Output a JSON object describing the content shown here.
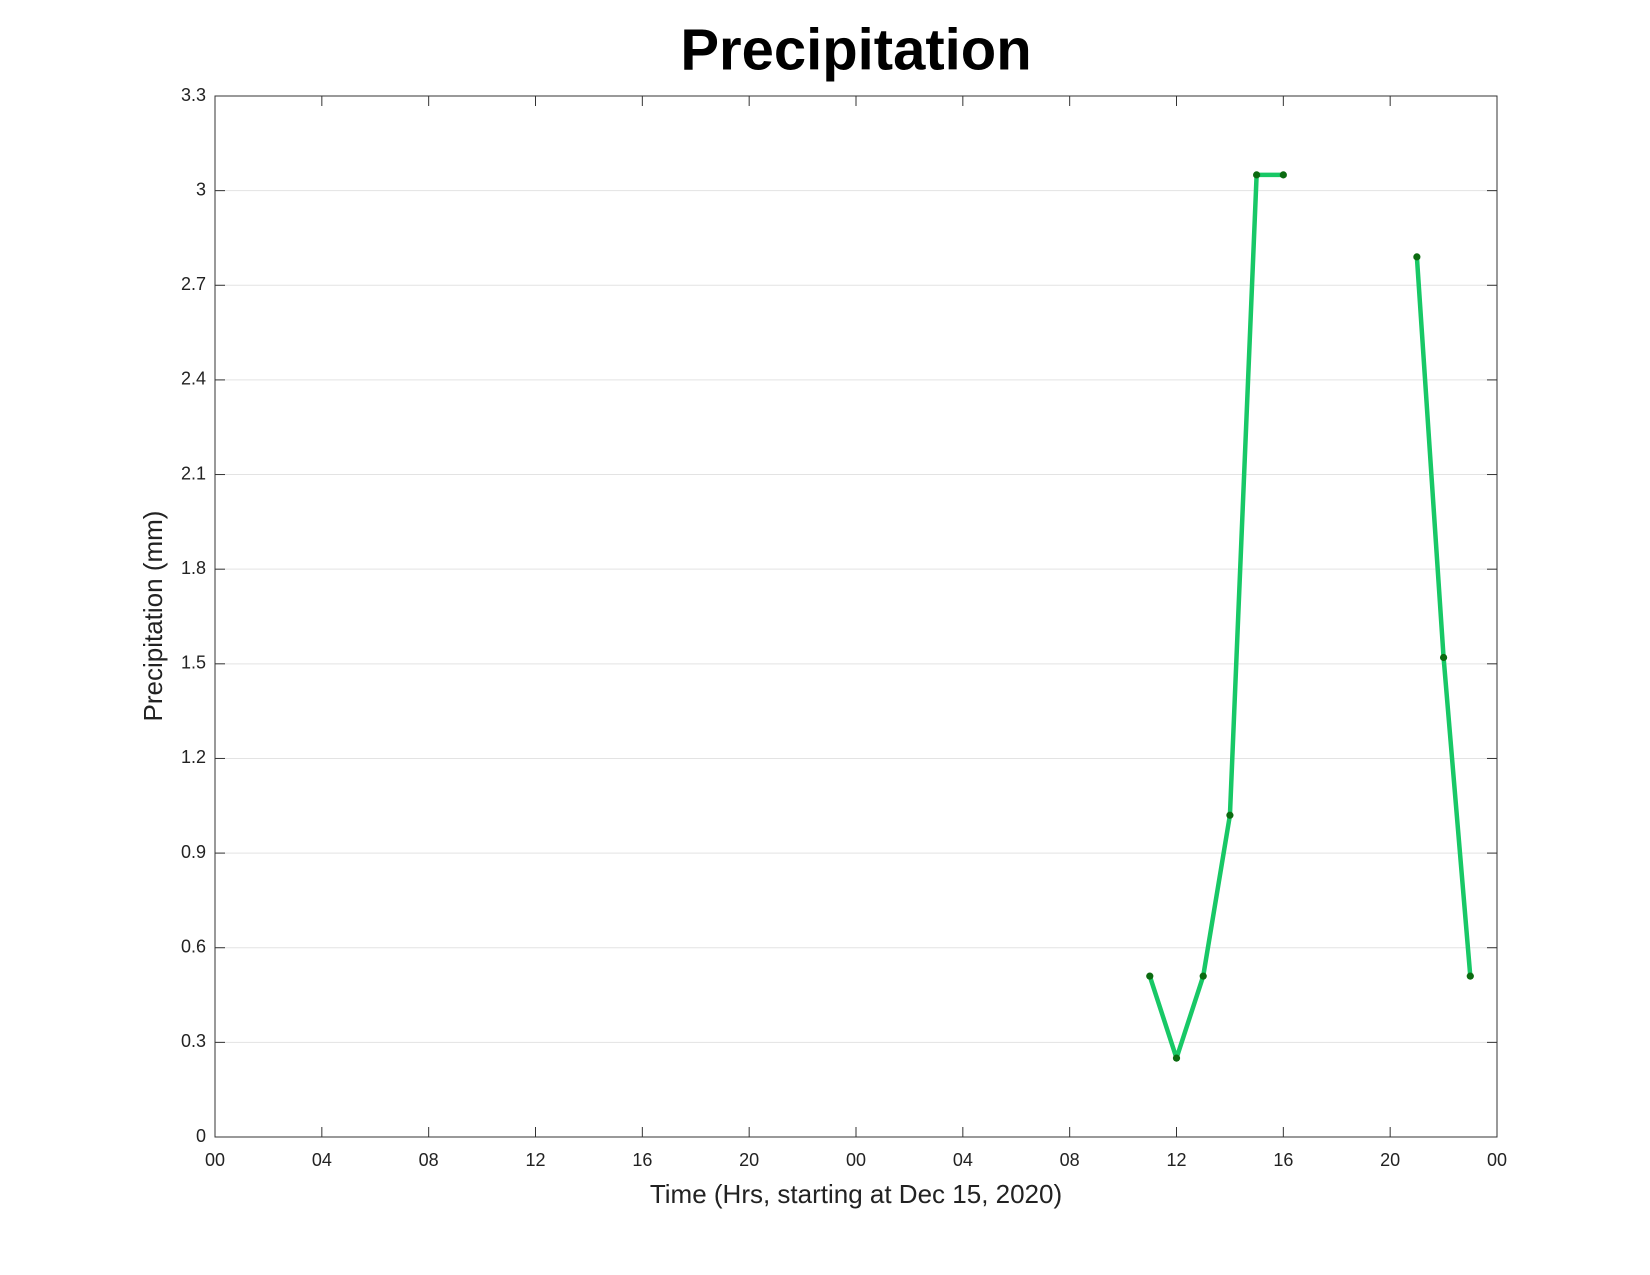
{
  "chart_data": {
    "type": "line",
    "title": "Precipitation",
    "x_label": "Time (Hrs, starting at Dec 15, 2020)",
    "y_label": "Precipitation (mm)",
    "x": [
      35,
      36,
      37,
      38,
      39,
      40,
      41,
      42,
      43,
      44,
      45,
      46,
      47
    ],
    "series": [
      {
        "name": "Precipitation",
        "color": "#18c866",
        "marker_color": "#0b6b10",
        "values": [
          0.51,
          0.25,
          0.51,
          1.02,
          3.05,
          3.05,
          null,
          null,
          null,
          null,
          2.79,
          1.52,
          0.51
        ]
      }
    ],
    "xlim": [
      0,
      48
    ],
    "xticks": [
      {
        "value": 0,
        "label": "00"
      },
      {
        "value": 4,
        "label": "04"
      },
      {
        "value": 8,
        "label": "08"
      },
      12,
      16,
      20,
      {
        "value": 24,
        "label": "00"
      },
      {
        "value": 28,
        "label": "04"
      },
      {
        "value": 32,
        "label": "08"
      },
      {
        "value": 36,
        "label": "12"
      },
      {
        "value": 40,
        "label": "16"
      },
      {
        "value": 44,
        "label": "20"
      },
      {
        "value": 48,
        "label": "00"
      }
    ],
    "ylim": [
      0,
      3.3
    ],
    "yticks": [
      0,
      0.3,
      0.6,
      0.9,
      1.2,
      1.5,
      1.8,
      2.1,
      2.4,
      2.7,
      3,
      3.3
    ],
    "grid": "y"
  }
}
